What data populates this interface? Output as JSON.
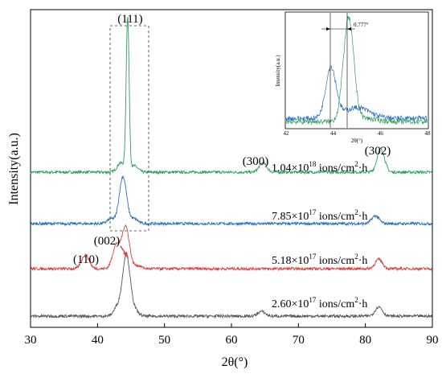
{
  "chart_data": {
    "type": "line",
    "xlabel": "2θ(°)",
    "ylabel": "Intensity(a.u.)",
    "xlim": [
      30,
      90
    ],
    "x_ticks": [
      "30",
      "40",
      "50",
      "60",
      "70",
      "80",
      "90"
    ],
    "grid": false,
    "series": [
      {
        "name": "1.04×10¹⁸ ions/cm²·h",
        "color": "#2ca05a",
        "points": [
          [
            30,
            0.02
          ],
          [
            38,
            0.03
          ],
          [
            43.5,
            0.08
          ],
          [
            44.5,
            1.0
          ],
          [
            45.5,
            0.06
          ],
          [
            50,
            0.02
          ],
          [
            64.7,
            0.08
          ],
          [
            70,
            0.02
          ],
          [
            82.3,
            0.17
          ],
          [
            90,
            0.02
          ]
        ]
      },
      {
        "name": "7.85×10¹⁷ ions/cm²·h",
        "color": "#2a6ec8",
        "points": [
          [
            30,
            0.02
          ],
          [
            42,
            0.05
          ],
          [
            43.8,
            0.32
          ],
          [
            45.5,
            0.05
          ],
          [
            50,
            0.02
          ],
          [
            64.5,
            0.03
          ],
          [
            81.5,
            0.07
          ],
          [
            90,
            0.02
          ]
        ]
      },
      {
        "name": "5.18×10¹⁷ ions/cm²·h",
        "color": "#e0403c",
        "points": [
          [
            30,
            0.03
          ],
          [
            38.2,
            0.12
          ],
          [
            42.8,
            0.18
          ],
          [
            44.2,
            0.3
          ],
          [
            46,
            0.05
          ],
          [
            50,
            0.03
          ],
          [
            65,
            0.04
          ],
          [
            82,
            0.09
          ],
          [
            90,
            0.03
          ]
        ]
      },
      {
        "name": "2.60×10¹⁷ ions/cm²·h",
        "color": "#555555",
        "points": [
          [
            30,
            0.02
          ],
          [
            38,
            0.03
          ],
          [
            43,
            0.08
          ],
          [
            44.3,
            0.41
          ],
          [
            45.5,
            0.06
          ],
          [
            50,
            0.02
          ],
          [
            64.5,
            0.05
          ],
          [
            82,
            0.08
          ],
          [
            90,
            0.02
          ]
        ]
      }
    ],
    "annotations": {
      "peaks": [
        "(111)",
        "(002)",
        "(110)",
        "(300)",
        "(302)"
      ],
      "dose_prefix": [
        "1.04×10",
        "7.85×10",
        "5.18×10",
        "2.60×10"
      ],
      "dose_exp": [
        "18",
        "17",
        "17",
        "17"
      ],
      "dose_unit": " ions/cm",
      "dose_tail": "·h",
      "dose_sup2": "2"
    },
    "inset": {
      "xlabel": "2θ(°)",
      "ylabel": "Intensity(a.u.)",
      "xlim": [
        42,
        48
      ],
      "x_ticks": [
        "42",
        "44",
        "46",
        "48"
      ],
      "shift_label": "0.777°",
      "series": [
        {
          "color": "#2a6ec8",
          "points": [
            [
              42,
              0.12
            ],
            [
              43.9,
              0.55
            ],
            [
              45,
              0.18
            ],
            [
              48,
              0.08
            ]
          ]
        },
        {
          "color": "#2ca05a",
          "points": [
            [
              42,
              0.05
            ],
            [
              44.65,
              1.0
            ],
            [
              45.3,
              0.08
            ],
            [
              48,
              0.05
            ]
          ]
        }
      ]
    }
  }
}
